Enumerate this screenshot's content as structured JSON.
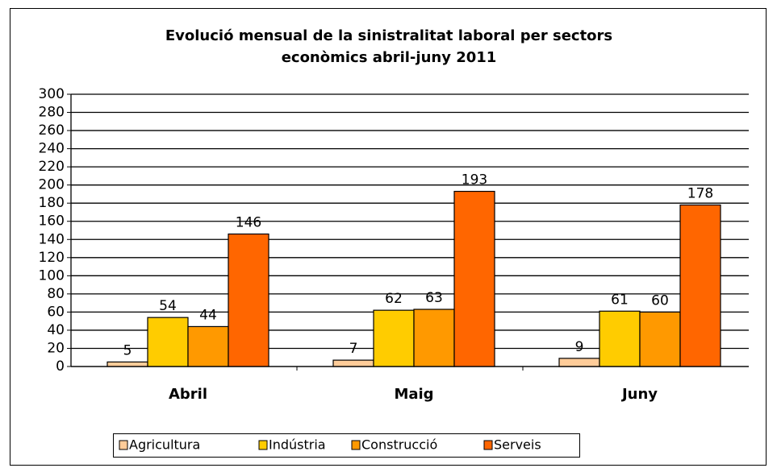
{
  "chart_data": {
    "type": "bar",
    "title": [
      "Evolució mensual de la sinistralitat laboral per sectors",
      "econòmics abril-juny 2011"
    ],
    "categories": [
      "Abril",
      "Maig",
      "Juny"
    ],
    "series": [
      {
        "name": "Agricultura",
        "color": "#ffcc99",
        "values": [
          5,
          7,
          9
        ]
      },
      {
        "name": "Indústria",
        "color": "#ffcc00",
        "values": [
          54,
          62,
          61
        ]
      },
      {
        "name": "Construcció",
        "color": "#ff9900",
        "values": [
          44,
          63,
          60
        ]
      },
      {
        "name": "Serveis",
        "color": "#ff6600",
        "values": [
          146,
          193,
          178
        ]
      }
    ],
    "ylim": [
      0,
      300
    ],
    "yticks": [
      0,
      20,
      40,
      60,
      80,
      100,
      120,
      140,
      160,
      180,
      200,
      220,
      240,
      260,
      280,
      300
    ],
    "grid": true,
    "legend": "bottom"
  }
}
